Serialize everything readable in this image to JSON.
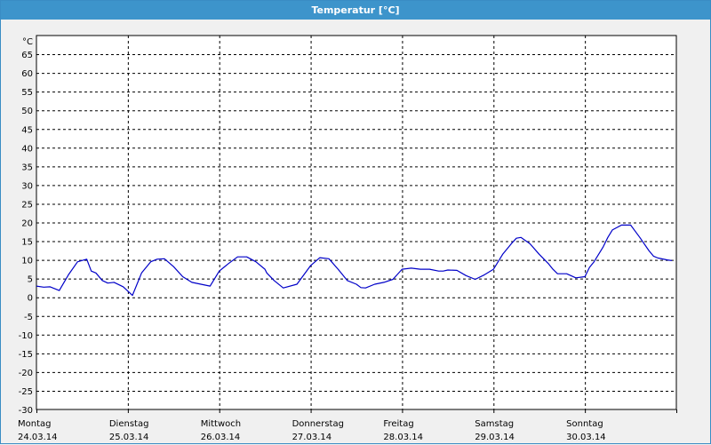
{
  "window": {
    "title": "Temperatur [°C]"
  },
  "colors": {
    "titlebar": "#3d94cb",
    "line": "#0000c8",
    "grid": "#000000",
    "plot_bg": "#ffffff"
  },
  "chart_data": {
    "type": "line",
    "title": "Temperatur [°C]",
    "ylabel": "°C",
    "xlabel": "",
    "ylim": [
      -30,
      70
    ],
    "yticks": [
      65,
      60,
      55,
      50,
      45,
      40,
      35,
      30,
      25,
      20,
      15,
      10,
      5,
      0,
      -5,
      -10,
      -15,
      -20,
      -25,
      -30
    ],
    "xlim": [
      0,
      7
    ],
    "grid": true,
    "x_tick_labels": [
      {
        "day": "Montag",
        "date": "24.03.14"
      },
      {
        "day": "Dienstag",
        "date": "25.03.14"
      },
      {
        "day": "Mittwoch",
        "date": "26.03.14"
      },
      {
        "day": "Donnerstag",
        "date": "27.03.14"
      },
      {
        "day": "Freitag",
        "date": "28.03.14"
      },
      {
        "day": "Samstag",
        "date": "29.03.14"
      },
      {
        "day": "Sonntag",
        "date": "30.03.14"
      }
    ],
    "series": [
      {
        "x": [
          0,
          0.08,
          0.15,
          0.25,
          0.35,
          0.45,
          0.55,
          0.6,
          0.65,
          0.72,
          0.78,
          0.85,
          0.95,
          1.05,
          1.15,
          1.25,
          1.32,
          1.4,
          1.5,
          1.6,
          1.7,
          1.8,
          1.9,
          2.0,
          2.1,
          2.2,
          2.3,
          2.4,
          2.5,
          2.52,
          2.6,
          2.7,
          2.85,
          3.0,
          3.1,
          3.2,
          3.3,
          3.4,
          3.5,
          3.55,
          3.6,
          3.7,
          3.8,
          3.9,
          4.0,
          4.1,
          4.2,
          4.3,
          4.4,
          4.45,
          4.5,
          4.6,
          4.7,
          4.8,
          4.9,
          5.0,
          5.1,
          5.2,
          5.25,
          5.3,
          5.4,
          5.5,
          5.6,
          5.65,
          5.7,
          5.8,
          5.9,
          6.0,
          6.05,
          6.1,
          6.2,
          6.25,
          6.3,
          6.4,
          6.5,
          6.6,
          6.7,
          6.75,
          6.8,
          6.9,
          6.95
        ],
        "y": [
          3,
          2.7,
          2.8,
          1.8,
          6,
          9.5,
          10.2,
          7,
          6.5,
          4.5,
          3.8,
          4,
          2.8,
          0.5,
          6.5,
          9.5,
          10.2,
          10.3,
          8.2,
          5.5,
          4,
          3.5,
          3,
          7,
          9,
          10.8,
          10.8,
          9.5,
          7.5,
          6.5,
          4.5,
          2.5,
          3.5,
          8.5,
          10.6,
          10.3,
          7.5,
          4.5,
          3.5,
          2.6,
          2.5,
          3.5,
          4,
          4.8,
          7.5,
          7.8,
          7.5,
          7.5,
          7,
          7,
          7.3,
          7.2,
          5.8,
          4.8,
          6,
          7.5,
          11.5,
          14.5,
          15.8,
          16,
          14.3,
          11.5,
          9,
          7.5,
          6.3,
          6.3,
          5.2,
          5.5,
          8,
          9.5,
          13.5,
          16,
          18,
          19.3,
          19.3,
          16,
          12.5,
          11,
          10.5,
          10,
          9.8
        ]
      }
    ]
  }
}
